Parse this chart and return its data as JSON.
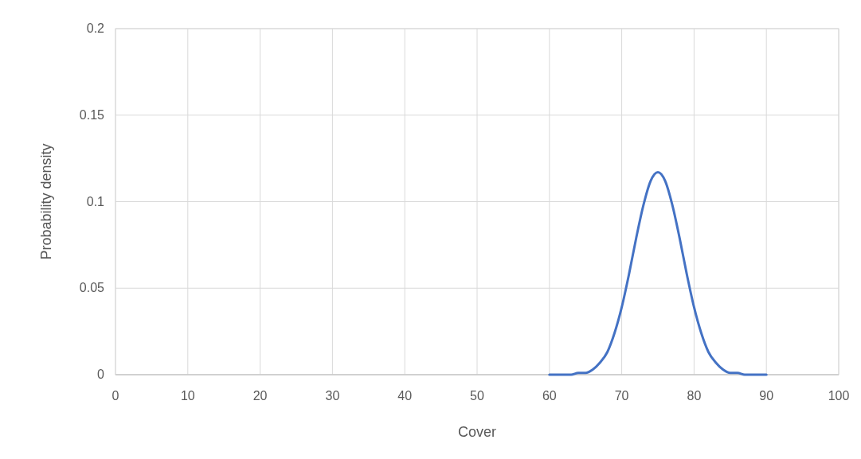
{
  "chart_data": {
    "type": "line",
    "xlabel": "Cover",
    "ylabel": "Probability density",
    "x": [
      60,
      61,
      62,
      63,
      64,
      65,
      66,
      67,
      68,
      69,
      70,
      71,
      72,
      73,
      74,
      75,
      76,
      77,
      78,
      79,
      80,
      81,
      82,
      83,
      84,
      85,
      86,
      87,
      88,
      89,
      90
    ],
    "series": [
      {
        "color": "#4472c4",
        "values": [
          0,
          0,
          0,
          0,
          0.001,
          0.001,
          0.003,
          0.007,
          0.013,
          0.024,
          0.039,
          0.058,
          0.079,
          0.098,
          0.112,
          0.117,
          0.112,
          0.098,
          0.079,
          0.058,
          0.039,
          0.024,
          0.013,
          0.007,
          0.003,
          0.001,
          0.001,
          0,
          0,
          0,
          0
        ]
      }
    ],
    "xlim": [
      0,
      100
    ],
    "xticks": [
      0,
      10,
      20,
      30,
      40,
      50,
      60,
      70,
      80,
      90,
      100
    ],
    "ylim": [
      0,
      0.2
    ],
    "yticks": [
      0,
      0.05,
      0.1,
      0.15,
      0.2
    ],
    "grid": true,
    "marker": "none",
    "line_style": "solid"
  }
}
